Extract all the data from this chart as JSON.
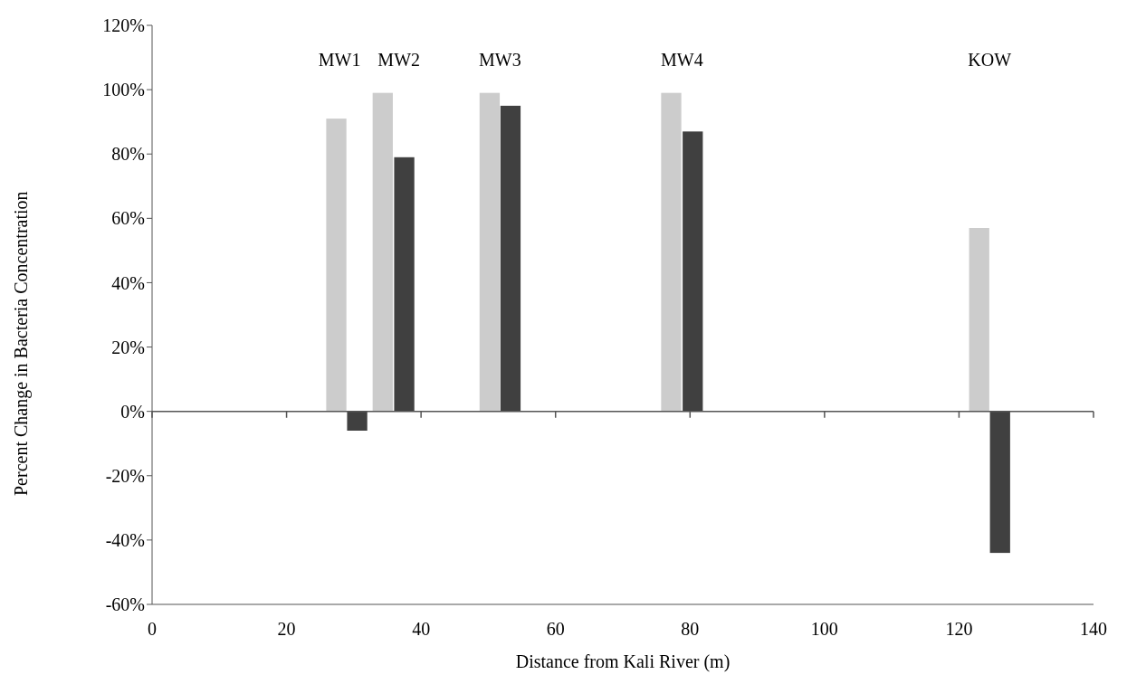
{
  "chart_data": {
    "type": "bar",
    "xlabel": "Distance from Kali River (m)",
    "ylabel": "Percent Change in Bacteria Concentration",
    "series": [
      {
        "color": "#cccccc",
        "x": [
          27.4,
          34.3,
          50.2,
          77.2,
          123
        ],
        "values": [
          91,
          99,
          99,
          99,
          57
        ]
      },
      {
        "color": "#404040",
        "x": [
          30.5,
          37.5,
          53.3,
          80.4,
          126.1
        ],
        "values": [
          -6,
          79,
          95,
          87,
          -44
        ]
      }
    ],
    "annotations": [
      "MW1",
      "MW2",
      "MW3",
      "MW4",
      "KOW"
    ],
    "xlim": [
      0,
      140
    ],
    "xticks": [
      0,
      20,
      40,
      60,
      80,
      100,
      120,
      140
    ],
    "ylim": [
      -60,
      120
    ],
    "yticks": [
      {
        "value": -60,
        "label": "-60%"
      },
      {
        "value": -40,
        "label": "-40%"
      },
      {
        "value": -20,
        "label": "-20%"
      },
      {
        "value": 0,
        "label": "0%"
      },
      {
        "value": 20,
        "label": "20%"
      },
      {
        "value": 40,
        "label": "40%"
      },
      {
        "value": 60,
        "label": "60%"
      },
      {
        "value": 80,
        "label": "80%"
      },
      {
        "value": 100,
        "label": "100%"
      },
      {
        "value": 120,
        "label": "120%"
      }
    ],
    "legend": false
  }
}
